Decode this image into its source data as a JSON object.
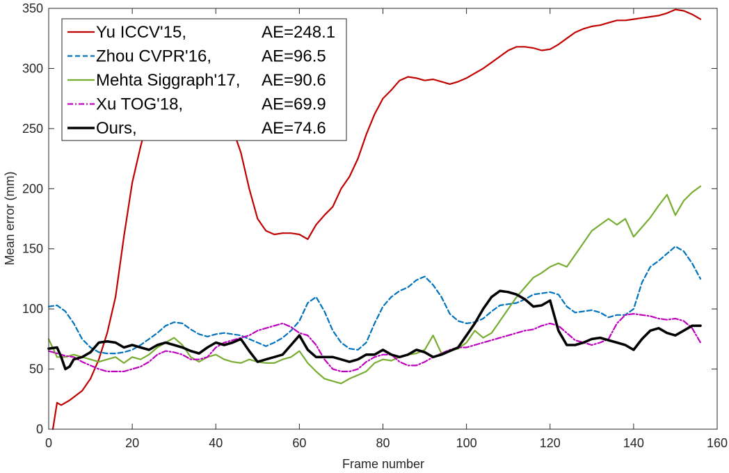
{
  "chart_data": {
    "type": "line",
    "xlabel": "Frame number",
    "ylabel": "Mean error (mm)",
    "xlim": [
      0,
      160
    ],
    "ylim": [
      0,
      350
    ],
    "xticks": [
      0,
      20,
      40,
      60,
      80,
      100,
      120,
      140,
      160
    ],
    "yticks": [
      0,
      50,
      100,
      150,
      200,
      250,
      300,
      350
    ],
    "x_tick_labels": [
      "0",
      "20",
      "40",
      "60",
      "80",
      "100",
      "120",
      "140",
      "160"
    ],
    "y_tick_labels": [
      "0",
      "50",
      "100",
      "150",
      "200",
      "250",
      "300",
      "350"
    ],
    "grid": false,
    "legend_position": "top-left",
    "series": [
      {
        "name": "Yu ICCV'15,",
        "ae": "AE=248.1",
        "color": "#c00000",
        "dash": "solid",
        "x": [
          1,
          2,
          3,
          5,
          8,
          10,
          12,
          14,
          16,
          18,
          20,
          22,
          24,
          26,
          28,
          30,
          32,
          34,
          36,
          38,
          40,
          42,
          44,
          46,
          48,
          50,
          52,
          54,
          56,
          58,
          60,
          62,
          64,
          66,
          68,
          70,
          72,
          74,
          76,
          78,
          80,
          82,
          84,
          86,
          88,
          90,
          92,
          94,
          96,
          98,
          100,
          102,
          104,
          106,
          108,
          110,
          112,
          114,
          116,
          118,
          120,
          122,
          124,
          126,
          128,
          130,
          132,
          134,
          136,
          138,
          140,
          142,
          144,
          146,
          148,
          150,
          152,
          154,
          156
        ],
        "y": [
          0,
          22,
          20,
          24,
          32,
          42,
          58,
          80,
          110,
          160,
          205,
          235,
          262,
          290,
          310,
          320,
          325,
          320,
          310,
          300,
          288,
          272,
          250,
          230,
          200,
          175,
          165,
          162,
          163,
          163,
          162,
          158,
          170,
          178,
          185,
          200,
          210,
          225,
          245,
          262,
          275,
          282,
          290,
          293,
          292,
          290,
          291,
          289,
          287,
          289,
          292,
          296,
          300,
          305,
          310,
          315,
          318,
          318,
          317,
          315,
          316,
          320,
          325,
          330,
          333,
          335,
          336,
          338,
          340,
          340,
          341,
          342,
          343,
          344,
          346,
          349,
          348,
          345,
          341
        ]
      },
      {
        "name": "Zhou CVPR'16,",
        "ae": "AE=96.5",
        "color": "#0072bd",
        "dash": "dashed",
        "x": [
          0,
          2,
          4,
          6,
          8,
          10,
          12,
          14,
          16,
          18,
          20,
          22,
          24,
          26,
          28,
          30,
          32,
          34,
          36,
          38,
          40,
          42,
          44,
          46,
          48,
          50,
          52,
          54,
          56,
          58,
          60,
          62,
          64,
          66,
          68,
          70,
          72,
          74,
          76,
          78,
          80,
          82,
          84,
          86,
          88,
          90,
          92,
          94,
          96,
          98,
          100,
          102,
          104,
          106,
          108,
          110,
          112,
          114,
          116,
          118,
          120,
          122,
          124,
          126,
          128,
          130,
          132,
          134,
          136,
          138,
          140,
          142,
          144,
          146,
          148,
          150,
          152,
          154,
          156
        ],
        "y": [
          102,
          103,
          98,
          88,
          75,
          68,
          64,
          63,
          63,
          64,
          66,
          70,
          75,
          80,
          86,
          89,
          88,
          83,
          79,
          77,
          79,
          80,
          79,
          78,
          75,
          72,
          69,
          72,
          76,
          82,
          90,
          105,
          110,
          98,
          82,
          72,
          67,
          66,
          72,
          88,
          102,
          110,
          115,
          118,
          124,
          127,
          120,
          110,
          96,
          90,
          88,
          89,
          92,
          98,
          103,
          104,
          105,
          108,
          112,
          113,
          114,
          112,
          102,
          97,
          98,
          99,
          97,
          93,
          95,
          95,
          100,
          122,
          135,
          140,
          146,
          152,
          148,
          138,
          125
        ]
      },
      {
        "name": "Mehta Siggraph'17,",
        "ae": "AE=90.6",
        "color": "#77ac30",
        "dash": "solid",
        "x": [
          0,
          2,
          4,
          6,
          8,
          10,
          12,
          14,
          16,
          18,
          20,
          22,
          24,
          26,
          28,
          30,
          32,
          34,
          36,
          38,
          40,
          42,
          44,
          46,
          48,
          50,
          52,
          54,
          56,
          58,
          60,
          62,
          64,
          66,
          68,
          70,
          72,
          74,
          76,
          78,
          80,
          82,
          84,
          86,
          88,
          90,
          92,
          94,
          96,
          98,
          100,
          102,
          104,
          106,
          108,
          110,
          112,
          114,
          116,
          118,
          120,
          122,
          124,
          126,
          128,
          130,
          132,
          134,
          136,
          138,
          140,
          142,
          144,
          146,
          148,
          150,
          152,
          154,
          156
        ],
        "y": [
          75,
          60,
          60,
          62,
          60,
          58,
          56,
          58,
          60,
          55,
          60,
          58,
          62,
          68,
          72,
          76,
          70,
          60,
          56,
          60,
          62,
          58,
          56,
          55,
          58,
          56,
          55,
          55,
          58,
          60,
          65,
          55,
          48,
          42,
          40,
          38,
          42,
          45,
          48,
          55,
          58,
          57,
          60,
          62,
          63,
          66,
          78,
          63,
          65,
          67,
          72,
          82,
          76,
          80,
          90,
          100,
          110,
          118,
          126,
          130,
          135,
          138,
          135,
          145,
          155,
          165,
          170,
          175,
          170,
          175,
          160,
          168,
          176,
          186,
          195,
          178,
          190,
          197,
          202
        ]
      },
      {
        "name": "Xu TOG'18,",
        "ae": "AE=69.9",
        "color": "#bd00bd",
        "dash": "dashdot",
        "x": [
          0,
          2,
          4,
          6,
          8,
          10,
          12,
          14,
          16,
          18,
          20,
          22,
          24,
          26,
          28,
          30,
          32,
          34,
          36,
          38,
          40,
          42,
          44,
          46,
          48,
          50,
          52,
          54,
          56,
          58,
          60,
          62,
          64,
          66,
          68,
          70,
          72,
          74,
          76,
          78,
          80,
          82,
          84,
          86,
          88,
          90,
          92,
          94,
          96,
          98,
          100,
          102,
          104,
          106,
          108,
          110,
          112,
          114,
          116,
          118,
          120,
          122,
          124,
          126,
          128,
          130,
          132,
          134,
          136,
          138,
          140,
          142,
          144,
          146,
          148,
          150,
          152,
          154,
          156
        ],
        "y": [
          65,
          63,
          61,
          60,
          56,
          53,
          50,
          48,
          48,
          48,
          50,
          52,
          56,
          62,
          65,
          64,
          62,
          58,
          58,
          60,
          68,
          72,
          74,
          76,
          78,
          82,
          84,
          86,
          88,
          85,
          80,
          78,
          70,
          58,
          50,
          48,
          48,
          50,
          56,
          60,
          62,
          62,
          56,
          53,
          53,
          56,
          60,
          63,
          66,
          68,
          68,
          70,
          72,
          74,
          76,
          78,
          80,
          82,
          83,
          86,
          88,
          86,
          80,
          74,
          72,
          70,
          72,
          75,
          88,
          95,
          96,
          95,
          94,
          92,
          91,
          92,
          90,
          84,
          72
        ]
      },
      {
        "name": "Ours,",
        "ae": "AE=74.6",
        "color": "#000000",
        "dash": "solid",
        "x": [
          0,
          2,
          3,
          4,
          5,
          6,
          8,
          10,
          12,
          14,
          16,
          18,
          20,
          22,
          24,
          26,
          28,
          30,
          32,
          34,
          36,
          38,
          40,
          42,
          44,
          46,
          48,
          50,
          52,
          54,
          56,
          58,
          60,
          62,
          64,
          66,
          68,
          70,
          72,
          74,
          76,
          78,
          80,
          82,
          84,
          86,
          88,
          90,
          92,
          94,
          96,
          98,
          100,
          102,
          104,
          106,
          108,
          110,
          112,
          114,
          116,
          118,
          120,
          122,
          124,
          126,
          128,
          130,
          132,
          134,
          136,
          138,
          140,
          142,
          144,
          146,
          148,
          150,
          152,
          154,
          156
        ],
        "y": [
          67,
          68,
          60,
          50,
          52,
          58,
          60,
          64,
          72,
          73,
          72,
          68,
          70,
          68,
          66,
          70,
          72,
          70,
          68,
          65,
          63,
          68,
          72,
          70,
          72,
          75,
          65,
          56,
          58,
          60,
          62,
          70,
          78,
          66,
          60,
          60,
          60,
          58,
          56,
          58,
          62,
          62,
          66,
          62,
          60,
          62,
          66,
          64,
          60,
          62,
          65,
          68,
          78,
          88,
          100,
          110,
          115,
          114,
          112,
          108,
          102,
          103,
          107,
          82,
          70,
          70,
          72,
          75,
          76,
          74,
          72,
          70,
          66,
          75,
          82,
          84,
          80,
          78,
          82,
          86,
          86
        ]
      }
    ]
  }
}
